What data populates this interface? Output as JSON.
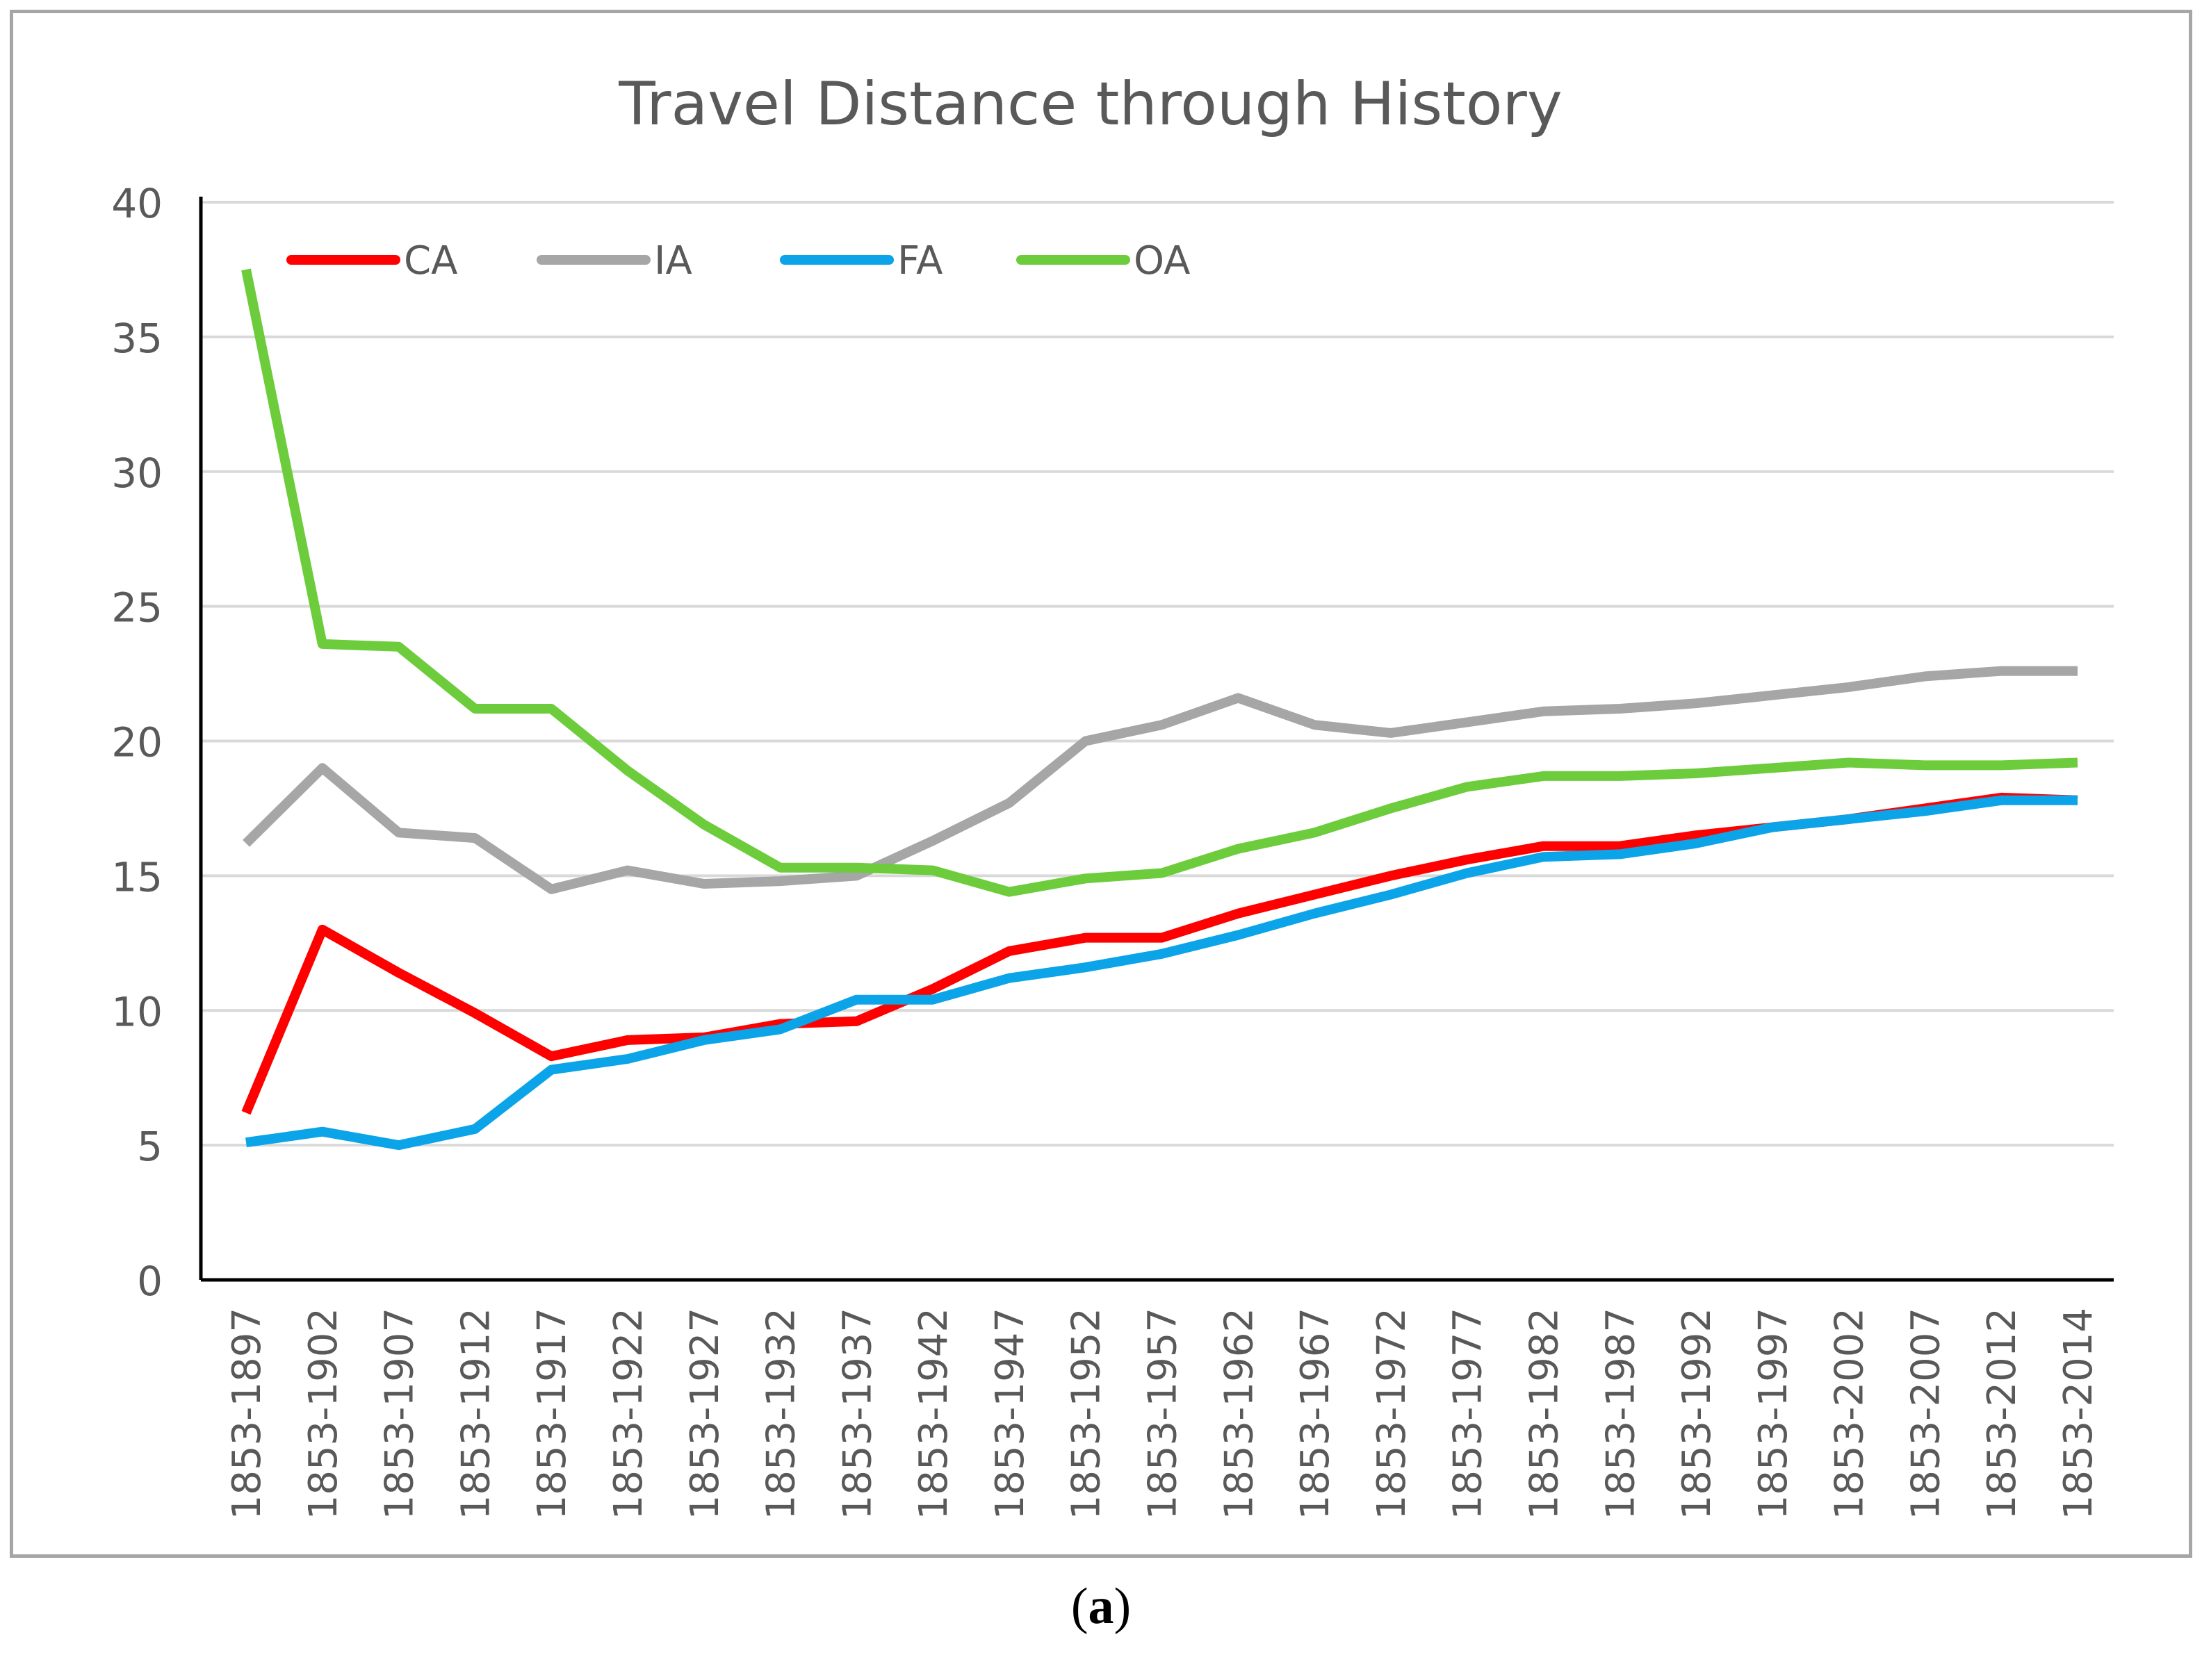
{
  "caption": {
    "open": "(",
    "letter": "a",
    "close": ")"
  },
  "chart_data": {
    "type": "line",
    "title": "Travel Distance through History",
    "xlabel": "",
    "ylabel": "",
    "ylim": [
      0,
      40
    ],
    "yticks": [
      0,
      5,
      10,
      15,
      20,
      25,
      30,
      35,
      40
    ],
    "grid": true,
    "legend_position": "top-left, inside plot",
    "categories": [
      "1853-1897",
      "1853-1902",
      "1853-1907",
      "1853-1912",
      "1853-1917",
      "1853-1922",
      "1853-1927",
      "1853-1932",
      "1853-1937",
      "1853-1942",
      "1853-1947",
      "1853-1952",
      "1853-1957",
      "1853-1962",
      "1853-1967",
      "1853-1972",
      "1853-1977",
      "1853-1982",
      "1853-1987",
      "1853-1992",
      "1853-1997",
      "1853-2002",
      "1853-2007",
      "1853-2012",
      "1853-2014"
    ],
    "series": [
      {
        "name": "CA",
        "color": "#ff0000",
        "values": [
          6.2,
          13.0,
          11.4,
          9.9,
          8.3,
          8.9,
          9.0,
          9.5,
          9.6,
          10.8,
          12.2,
          12.7,
          12.7,
          13.6,
          14.3,
          15.0,
          15.6,
          16.1,
          16.1,
          16.5,
          16.8,
          17.1,
          17.5,
          17.9,
          17.8
        ]
      },
      {
        "name": "IA",
        "color": "#a6a6a6",
        "values": [
          16.2,
          19.0,
          16.6,
          16.4,
          14.5,
          15.2,
          14.7,
          14.8,
          15.0,
          16.3,
          17.7,
          20.0,
          20.6,
          21.6,
          20.6,
          20.3,
          20.7,
          21.1,
          21.2,
          21.4,
          21.7,
          22.0,
          22.4,
          22.6,
          22.6
        ]
      },
      {
        "name": "FA",
        "color": "#0ba4e8",
        "values": [
          5.1,
          5.5,
          5.0,
          5.6,
          7.8,
          8.2,
          8.9,
          9.3,
          10.4,
          10.4,
          11.2,
          11.6,
          12.1,
          12.8,
          13.6,
          14.3,
          15.1,
          15.7,
          15.8,
          16.2,
          16.8,
          17.1,
          17.4,
          17.8,
          17.8
        ]
      },
      {
        "name": "OA",
        "color": "#6dcc3b",
        "values": [
          37.5,
          23.6,
          23.5,
          21.2,
          21.2,
          18.9,
          16.9,
          15.3,
          15.3,
          15.2,
          14.4,
          14.9,
          15.1,
          16.0,
          16.6,
          17.5,
          18.3,
          18.7,
          18.7,
          18.8,
          19.0,
          19.2,
          19.1,
          19.1,
          19.2
        ]
      }
    ]
  }
}
